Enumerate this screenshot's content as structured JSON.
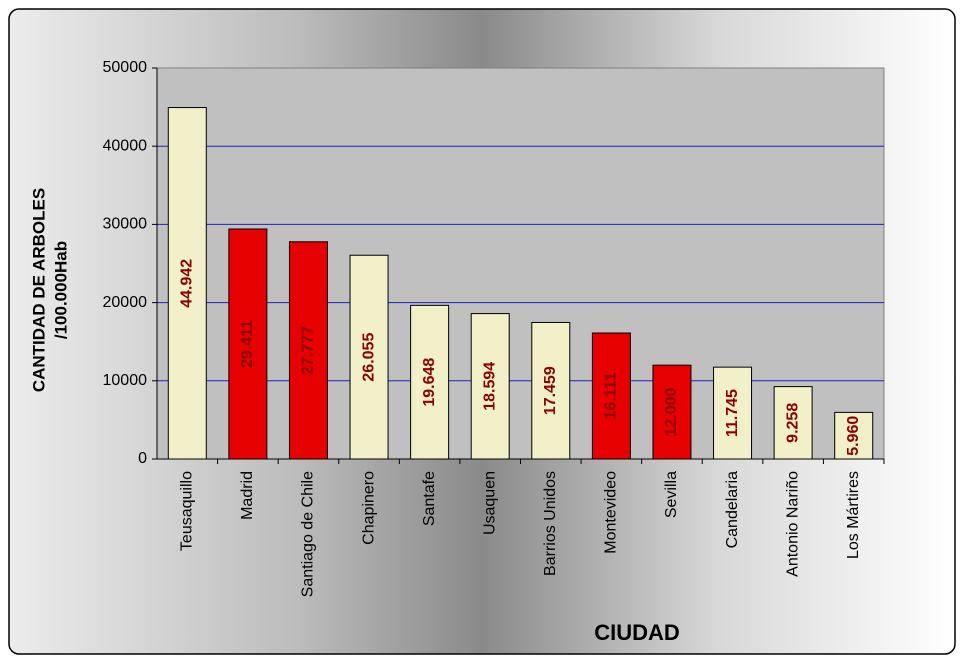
{
  "chart_data": {
    "type": "bar",
    "categories": [
      "Teusaquillo",
      "Madrid",
      "Santiago de Chile",
      "Chapinero",
      "Santafe",
      "Usaquen",
      "Barrios Unidos",
      "Montevideo",
      "Sevilla",
      "Candelaria",
      "Antonio Nariño",
      "Los Mártires"
    ],
    "values": [
      44942,
      29411,
      27777,
      26055,
      19648,
      18594,
      17459,
      16111,
      12000,
      11745,
      9258,
      5960
    ],
    "value_labels": [
      "44.942",
      "29.411",
      "27.777",
      "26.055",
      "19.648",
      "18.594",
      "17.459",
      "16.111",
      "12.000",
      "11.745",
      "9.258",
      "5.960"
    ],
    "colors": [
      "#f2f0c8",
      "#e60000",
      "#e60000",
      "#f2f0c8",
      "#f2f0c8",
      "#f2f0c8",
      "#f2f0c8",
      "#e60000",
      "#e60000",
      "#f2f0c8",
      "#f2f0c8",
      "#f2f0c8"
    ],
    "value_label_color": "#8b0000",
    "ylim": [
      0,
      50000
    ],
    "yticks": [
      0,
      10000,
      20000,
      30000,
      40000,
      50000
    ],
    "grid": true,
    "grid_color": "#2020c0",
    "y_label": [
      "CANTIDAD DE ARBOLES",
      "/100.000Hab"
    ],
    "x_label": "CIUDAD"
  }
}
